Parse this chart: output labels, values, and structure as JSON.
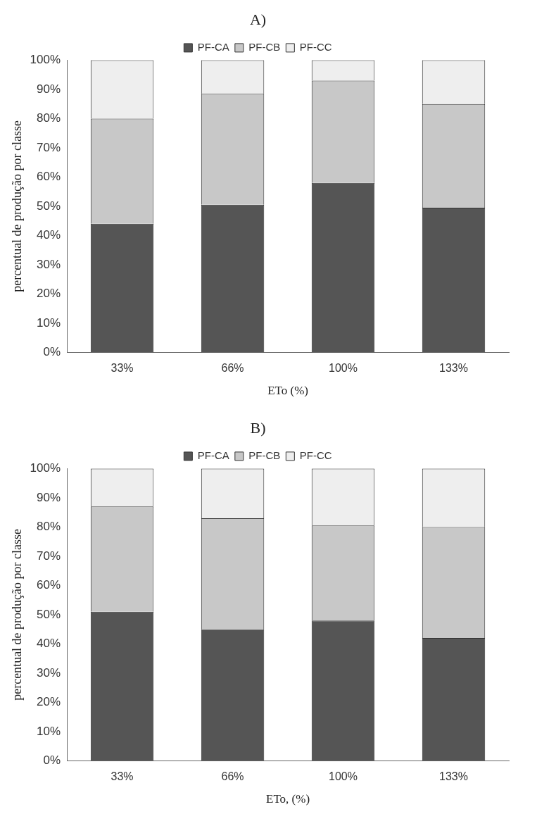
{
  "chart_data": [
    {
      "type": "bar",
      "title": "A)",
      "stacked": true,
      "xlabel": "ETo (%)",
      "ylabel": "percentual de produção por classe",
      "categories": [
        "33%",
        "66%",
        "100%",
        "133%"
      ],
      "series": [
        {
          "name": "PF-CA",
          "color": "#555555",
          "values": [
            44,
            50.5,
            58,
            49.5
          ]
        },
        {
          "name": "PF-CB",
          "color": "#c8c8c8",
          "values": [
            36,
            38,
            35,
            35.5
          ]
        },
        {
          "name": "PF-CC",
          "color": "#eeeeee",
          "values": [
            20,
            11.5,
            7,
            15
          ]
        }
      ],
      "ylim": [
        0,
        100
      ],
      "yticks": [
        {
          "value": 0,
          "label": "0%"
        },
        {
          "value": 10,
          "label": "10%"
        },
        {
          "value": 20,
          "label": "20%"
        },
        {
          "value": 30,
          "label": "30%"
        },
        {
          "value": 40,
          "label": "40%"
        },
        {
          "value": 50,
          "label": "50%"
        },
        {
          "value": 60,
          "label": "60%"
        },
        {
          "value": 70,
          "label": "70%"
        },
        {
          "value": 80,
          "label": "80%"
        },
        {
          "value": 90,
          "label": "90%"
        },
        {
          "value": 100,
          "label": "100%"
        }
      ],
      "grid": false,
      "legend": "top"
    },
    {
      "type": "bar",
      "title": "B)",
      "stacked": true,
      "xlabel": "ETo, (%)",
      "ylabel": "percentual de produção por classe",
      "categories": [
        "33%",
        "66%",
        "100%",
        "133%"
      ],
      "series": [
        {
          "name": "PF-CA",
          "color": "#555555",
          "values": [
            51,
            45,
            48,
            42
          ]
        },
        {
          "name": "PF-CB",
          "color": "#c8c8c8",
          "values": [
            36,
            38,
            32.5,
            38
          ]
        },
        {
          "name": "PF-CC",
          "color": "#eeeeee",
          "values": [
            13,
            17,
            19.5,
            20
          ]
        }
      ],
      "ylim": [
        0,
        100
      ],
      "yticks": [
        {
          "value": 0,
          "label": "0%"
        },
        {
          "value": 10,
          "label": "10%"
        },
        {
          "value": 20,
          "label": "20%"
        },
        {
          "value": 30,
          "label": "30%"
        },
        {
          "value": 40,
          "label": "40%"
        },
        {
          "value": 50,
          "label": "50%"
        },
        {
          "value": 60,
          "label": "60%"
        },
        {
          "value": 70,
          "label": "70%"
        },
        {
          "value": 80,
          "label": "80%"
        },
        {
          "value": 90,
          "label": "90%"
        },
        {
          "value": 100,
          "label": "100%"
        }
      ],
      "grid": false,
      "legend": "top"
    }
  ]
}
